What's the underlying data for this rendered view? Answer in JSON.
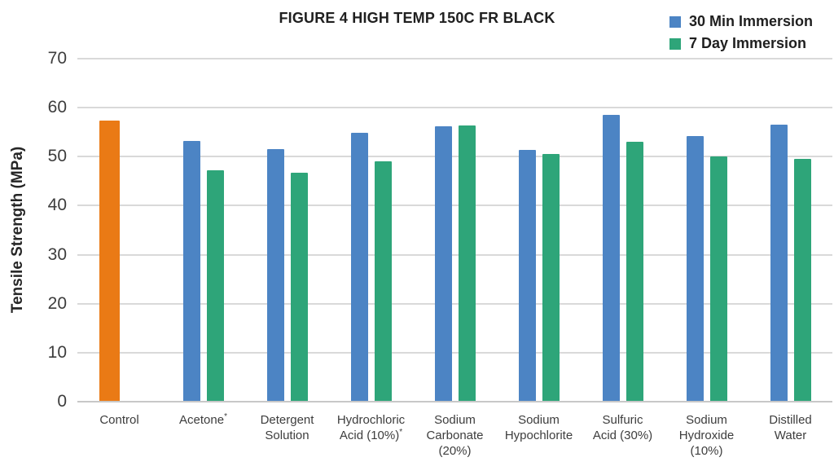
{
  "title": "FIGURE 4 HIGH TEMP 150C FR BLACK",
  "legend": [
    {
      "label": "30 Min Immersion",
      "color": "#4c84c4"
    },
    {
      "label": "7 Day Immersion",
      "color": "#2ea579"
    }
  ],
  "colors": {
    "gridline": "#d9d9d9",
    "baseline": "#c8c8c8",
    "title_text": "#1f1f1f",
    "axis_text": "#3d3d3d",
    "control_orange": "#ea7a15",
    "series_blue": "#4c84c4",
    "series_green": "#2ea579"
  },
  "chart_data": {
    "type": "bar",
    "title": "FIGURE 4 HIGH TEMP 150C FR BLACK",
    "xlabel": "",
    "ylabel": "Tensile Strength (MPa)",
    "ylim": [
      0,
      70
    ],
    "yticks": [
      0,
      10,
      20,
      30,
      40,
      50,
      60,
      70
    ],
    "grid": true,
    "legend_position": "top-right",
    "categories": [
      "Control",
      "Acetone*",
      "Detergent Solution",
      "Hydrochloric Acid (10%)*",
      "Sodium Carbonate (20%)",
      "Sodium Hypochlorite",
      "Sulfuric Acid (30%)",
      "Sodium Hydroxide (10%)",
      "Distilled Water"
    ],
    "category_label_lines": [
      [
        "Control"
      ],
      [
        "Acetone*"
      ],
      [
        "Detergent",
        "Solution"
      ],
      [
        "Hydrochloric",
        "Acid (10%)*"
      ],
      [
        "Sodium",
        "Carbonate",
        "(20%)"
      ],
      [
        "Sodium",
        "Hypochlorite"
      ],
      [
        "Sulfuric",
        "Acid (30%)"
      ],
      [
        "Sodium",
        "Hydroxide",
        "(10%)"
      ],
      [
        "Distilled",
        "Water"
      ]
    ],
    "control_bar": {
      "category": "Control",
      "value": 57.4,
      "color": "#ea7a15"
    },
    "series": [
      {
        "name": "30 Min Immersion",
        "color": "#4c84c4",
        "values": [
          null,
          53.2,
          51.5,
          54.8,
          56.2,
          51.3,
          58.5,
          54.2,
          56.6
        ]
      },
      {
        "name": "7 Day Immersion",
        "color": "#2ea579",
        "values": [
          null,
          47.3,
          46.7,
          49.0,
          56.4,
          50.5,
          53.1,
          50.1,
          49.5
        ]
      }
    ]
  }
}
